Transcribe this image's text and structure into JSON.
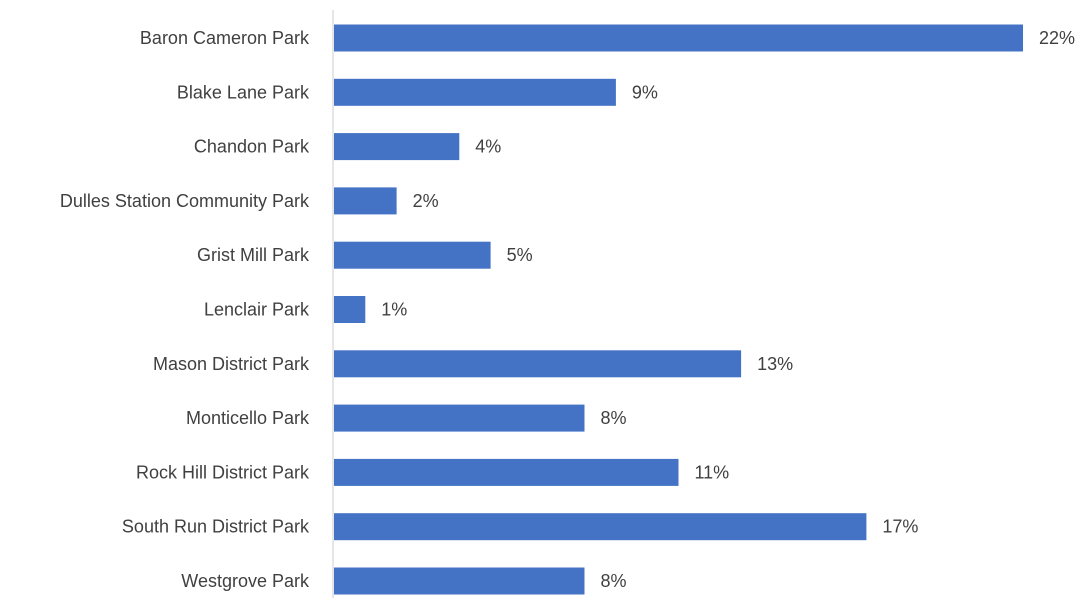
{
  "chart_data": {
    "type": "bar",
    "orientation": "horizontal",
    "title": "",
    "xlabel": "",
    "ylabel": "",
    "categories": [
      "Baron Cameron Park",
      "Blake Lane Park",
      "Chandon Park",
      "Dulles Station Community Park",
      "Grist Mill Park",
      "Lenclair Park",
      "Mason District Park",
      "Monticello Park",
      "Rock Hill District Park",
      "South Run District Park",
      "Westgrove Park"
    ],
    "values": [
      22,
      9,
      4,
      2,
      5,
      1,
      13,
      8,
      11,
      17,
      8
    ],
    "data_labels": [
      "22%",
      "9%",
      "4%",
      "2%",
      "5%",
      "1%",
      "13%",
      "8%",
      "11%",
      "17%",
      "8%"
    ],
    "value_unit": "%",
    "xlim": [
      0,
      22
    ],
    "grid": false,
    "legend": "none",
    "colors": {
      "bar": "#4472C4",
      "axis": "#D9D9D9",
      "text": "#404040"
    }
  }
}
